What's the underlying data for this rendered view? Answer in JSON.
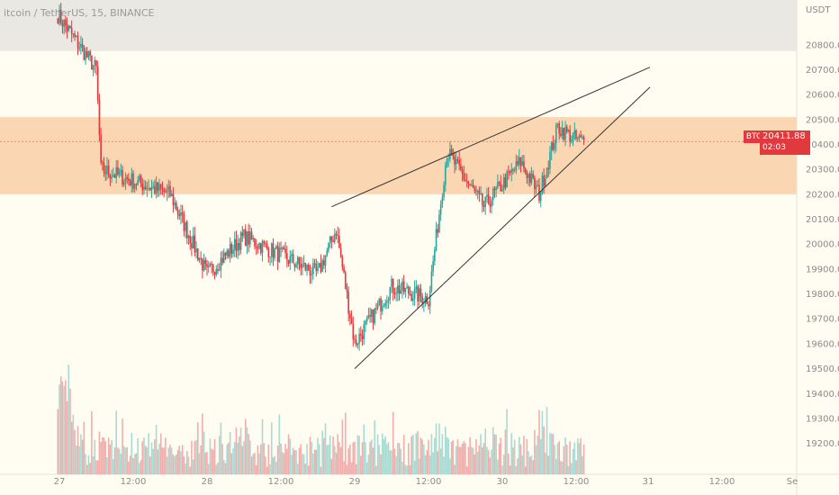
{
  "header": {
    "title": "itcoin / TetherUS, 15, BINANCE"
  },
  "price_axis": {
    "currency_label": "USDT"
  },
  "last_price": {
    "symbol": "BTCUSDT",
    "price": "20411.88",
    "countdown": "02:03",
    "value": 20411.88
  },
  "colors": {
    "background": "#fffdf2",
    "up": "#26a69a",
    "down": "#e0393e",
    "zone_orange": "#fbd6b2",
    "zone_gray": "#e9e8e3",
    "trendline": "#333333"
  },
  "chart_data": {
    "type": "candlestick",
    "title": "itcoin / TetherUS, 15, BINANCE",
    "ylim": [
      19130,
      20980
    ],
    "y_ticks": [
      20800,
      20700,
      20600,
      20500,
      20400,
      20300,
      20200,
      20100,
      20000,
      19900,
      19800,
      19700,
      19600,
      19500,
      19400,
      19300,
      19200
    ],
    "x_ticks": [
      "27",
      "12:00",
      "28",
      "12:00",
      "29",
      "12:00",
      "30",
      "12:00",
      "31",
      "12:00",
      "Se"
    ],
    "zones": [
      {
        "from": 20200,
        "to": 20510,
        "color": "#fbd6b2"
      },
      {
        "from": 20775,
        "to": 20980,
        "color": "#e9e8e3"
      }
    ],
    "trendlines": [
      {
        "from": [
          "28 20:15",
          20150
        ],
        "to": [
          "31 00:00",
          20710
        ]
      },
      {
        "from": [
          "29 00:00",
          19500
        ],
        "to": [
          "31 00:00",
          20630
        ]
      }
    ],
    "anchors": [
      {
        "time": "26 23:45",
        "price": 20920
      },
      {
        "time": "27 06:00",
        "price": 20700
      },
      {
        "time": "27 06:45",
        "price": 20300
      },
      {
        "time": "27 18:00",
        "price": 20200
      },
      {
        "time": "28 00:00",
        "price": 19880
      },
      {
        "time": "28 06:00",
        "price": 20030
      },
      {
        "time": "28 18:00",
        "price": 19880
      },
      {
        "time": "28 21:00",
        "price": 20060
      },
      {
        "time": "29 00:00",
        "price": 19600
      },
      {
        "time": "29 06:00",
        "price": 19830
      },
      {
        "time": "29 12:00",
        "price": 19780
      },
      {
        "time": "29 15:00",
        "price": 20370
      },
      {
        "time": "29 21:00",
        "price": 20150
      },
      {
        "time": "30 03:00",
        "price": 20330
      },
      {
        "time": "30 06:00",
        "price": 20200
      },
      {
        "time": "30 09:00",
        "price": 20470
      },
      {
        "time": "30 12:00",
        "price": 20420
      },
      {
        "time": "30 13:15",
        "price": 20412
      }
    ],
    "last_price": 20411.88
  }
}
